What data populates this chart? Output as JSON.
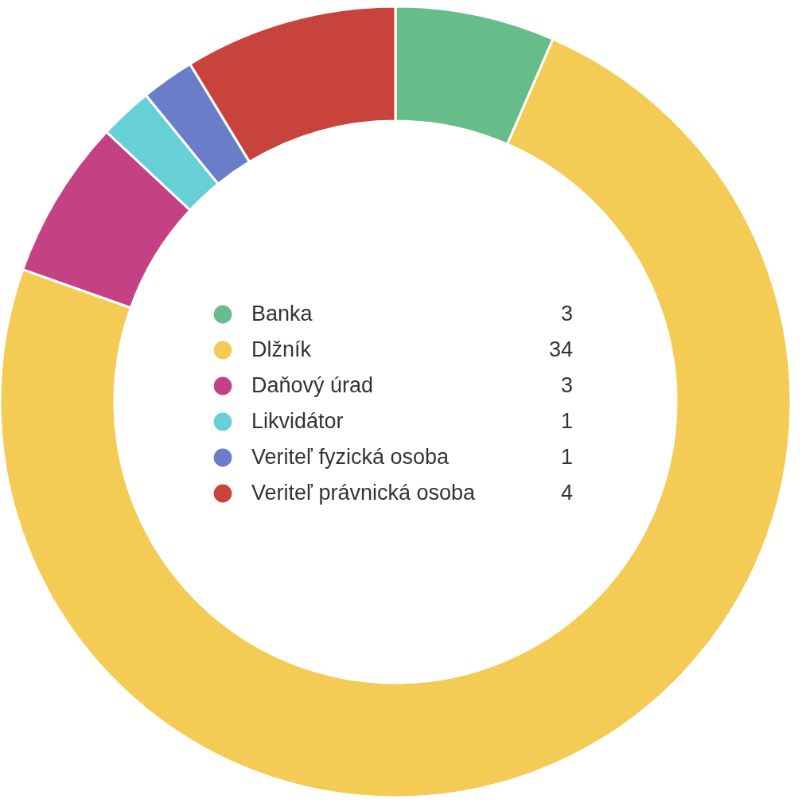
{
  "chart_data": {
    "type": "donut",
    "categories": [
      "Banka",
      "Dlžník",
      "Daňový úrad",
      "Likvidátor",
      "Veriteľ fyzická osoba",
      "Veriteľ právnická osoba"
    ],
    "values": [
      3,
      34,
      3,
      1,
      1,
      4
    ],
    "colors": [
      "#66bd8a",
      "#f4cb55",
      "#c44283",
      "#66d0d6",
      "#6a7dc8",
      "#c8433b"
    ],
    "legend": "center",
    "data_labels": true
  }
}
